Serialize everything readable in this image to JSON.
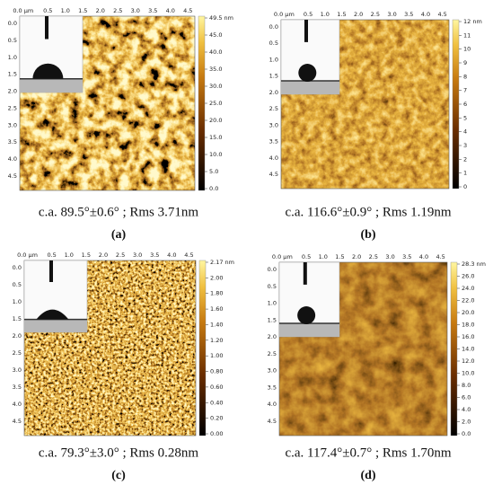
{
  "panels": [
    {
      "x_ticks": [
        "0.0 μm",
        "0.5",
        "1.0",
        "1.5",
        "2.0",
        "2.5",
        "3.0",
        "3.5",
        "4.0",
        "4.5"
      ],
      "y_ticks": [
        "0.0",
        "0.5",
        "1.0",
        "1.5",
        "2.0",
        "2.5",
        "3.0",
        "3.5",
        "4.0",
        "4.5"
      ],
      "colorbar_ticks": [
        "49.5 nm",
        "45.0",
        "40.0",
        "35.0",
        "30.0",
        "25.0",
        "20.0",
        "15.0",
        "10.0",
        "5.0",
        "0.0"
      ],
      "caption": "c.a. 89.5°±0.6° ; Rms 3.71nm",
      "label": "(a)"
    },
    {
      "x_ticks": [
        "0.0 μm",
        "0.5",
        "1.0",
        "1.5",
        "2.0",
        "2.5",
        "3.0",
        "3.5",
        "4.0",
        "4.5"
      ],
      "y_ticks": [
        "0.0",
        "0.5",
        "1.0",
        "1.5",
        "2.0",
        "2.5",
        "3.0",
        "3.5",
        "4.0",
        "4.5"
      ],
      "colorbar_ticks": [
        "12 nm",
        "11",
        "10",
        "9",
        "8",
        "7",
        "6",
        "5",
        "4",
        "3",
        "2",
        "1",
        "0"
      ],
      "caption": "c.a. 116.6°±0.9° ; Rms 1.19nm",
      "label": "(b)"
    },
    {
      "x_ticks": [
        "0.0 μm",
        "0.5",
        "1.0",
        "1.5",
        "2.0",
        "2.5",
        "3.0",
        "3.5",
        "4.0",
        "4.5"
      ],
      "y_ticks": [
        "0.0",
        "0.5",
        "1.0",
        "1.5",
        "2.0",
        "2.5",
        "3.0",
        "3.5",
        "4.0",
        "4.5"
      ],
      "colorbar_ticks": [
        "2.17 nm",
        "2.00",
        "1.80",
        "1.60",
        "1.40",
        "1.20",
        "1.00",
        "0.80",
        "0.60",
        "0.40",
        "0.20",
        "0.00"
      ],
      "caption": "c.a. 79.3°±3.0° ; Rms 0.28nm",
      "label": "(c)"
    },
    {
      "x_ticks": [
        "0.0 μm",
        "0.5",
        "1.0",
        "1.5",
        "2.0",
        "2.5",
        "3.0",
        "3.5",
        "4.0",
        "4.5"
      ],
      "y_ticks": [
        "0.0",
        "0.5",
        "1.0",
        "1.5",
        "2.0",
        "2.5",
        "3.0",
        "3.5",
        "4.0",
        "4.5"
      ],
      "colorbar_ticks": [
        "28.3 nm",
        "26.0",
        "24.0",
        "22.0",
        "20.0",
        "18.0",
        "16.0",
        "14.0",
        "12.0",
        "10.0",
        "8.0",
        "6.0",
        "4.0",
        "2.0",
        "0.0"
      ],
      "caption": "c.a. 117.4°±0.7° ; Rms 1.70nm",
      "label": "(d)"
    }
  ]
}
